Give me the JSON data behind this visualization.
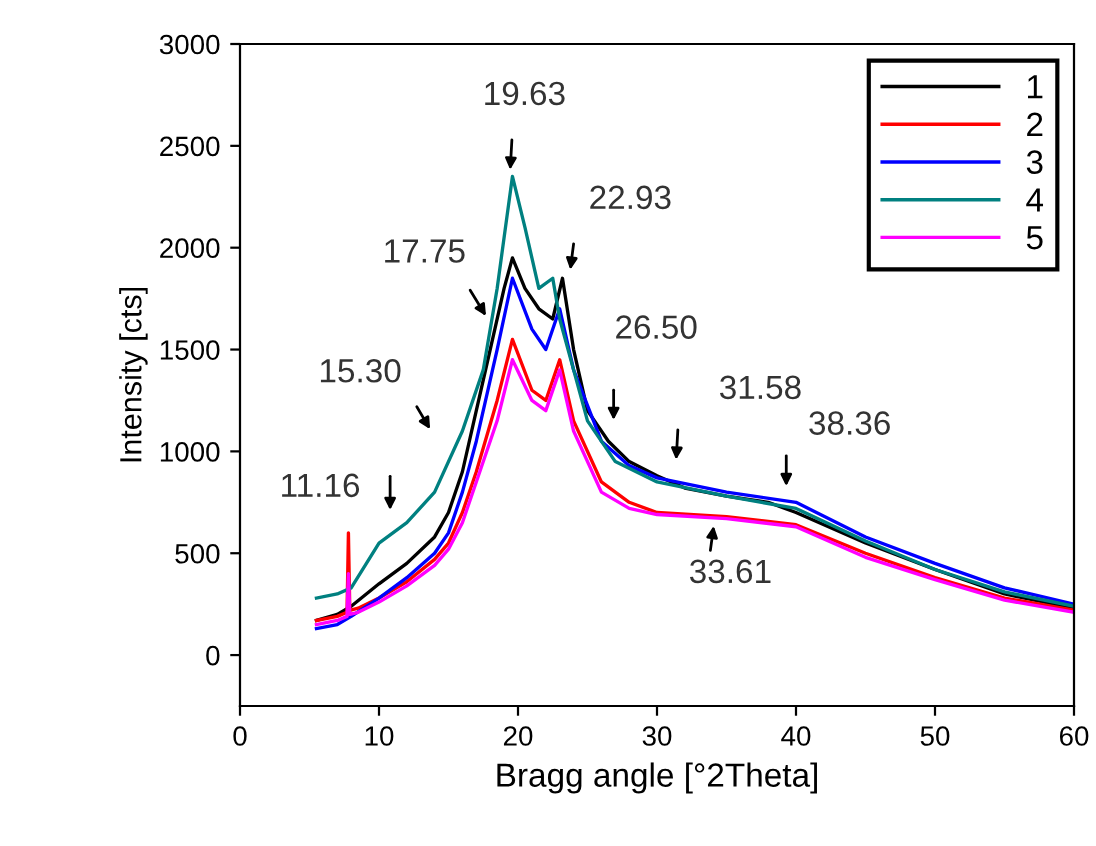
{
  "chart_data": {
    "type": "line",
    "xlabel": "Bragg angle [°2Theta]",
    "ylabel": "Intensity [cts]",
    "xlim": [
      0,
      60
    ],
    "ylim": [
      -250,
      3000
    ],
    "xticks": [
      0,
      10,
      20,
      30,
      40,
      50,
      60
    ],
    "yticks": [
      0,
      500,
      1000,
      1500,
      2000,
      2500,
      3000
    ],
    "legend": "top right",
    "grid": false,
    "series": [
      {
        "name": "1",
        "color": "#000000",
        "x": [
          5.5,
          7,
          8,
          10,
          12,
          14,
          15,
          16,
          17,
          18,
          19,
          19.6,
          20.5,
          21.5,
          22.5,
          23.2,
          24,
          25,
          26.5,
          28,
          30,
          32,
          35,
          38,
          40,
          45,
          50,
          55,
          60
        ],
        "values": [
          170,
          200,
          240,
          350,
          450,
          580,
          700,
          900,
          1200,
          1500,
          1800,
          1950,
          1800,
          1700,
          1650,
          1850,
          1500,
          1200,
          1050,
          950,
          880,
          820,
          780,
          750,
          700,
          550,
          420,
          300,
          230
        ]
      },
      {
        "name": "2",
        "color": "#ff0000",
        "x": [
          5.5,
          7,
          7.7,
          7.8,
          7.9,
          8.5,
          10,
          12,
          14,
          15,
          16,
          17,
          18.5,
          19.6,
          21,
          22,
          23,
          24,
          26,
          28,
          30,
          35,
          40,
          45,
          50,
          55,
          60
        ],
        "values": [
          170,
          190,
          210,
          600,
          220,
          230,
          280,
          360,
          470,
          550,
          700,
          900,
          1250,
          1550,
          1300,
          1250,
          1450,
          1150,
          850,
          750,
          700,
          680,
          640,
          500,
          380,
          280,
          220
        ]
      },
      {
        "name": "3",
        "color": "#0000ff",
        "x": [
          5.5,
          7,
          8,
          10,
          12,
          14,
          15,
          16,
          17,
          18.5,
          19.6,
          21,
          22,
          23,
          24,
          26,
          28,
          30,
          35,
          40,
          45,
          50,
          55,
          60
        ],
        "values": [
          130,
          150,
          190,
          280,
          380,
          500,
          600,
          800,
          1050,
          1500,
          1850,
          1600,
          1500,
          1700,
          1400,
          1050,
          930,
          870,
          800,
          750,
          580,
          450,
          330,
          250
        ]
      },
      {
        "name": "4",
        "color": "#008080",
        "x": [
          5.5,
          7,
          8,
          10,
          12,
          14,
          16,
          17.5,
          18.5,
          19.6,
          20.5,
          21.5,
          22.5,
          23,
          24,
          25,
          27,
          30,
          35,
          40,
          45,
          50,
          55,
          60
        ],
        "values": [
          280,
          300,
          330,
          550,
          650,
          800,
          1100,
          1400,
          1800,
          2350,
          2100,
          1800,
          1850,
          1650,
          1400,
          1150,
          950,
          850,
          780,
          720,
          560,
          420,
          310,
          240
        ]
      },
      {
        "name": "5",
        "color": "#ff00ff",
        "x": [
          5.5,
          7,
          7.7,
          7.8,
          7.9,
          8.5,
          10,
          12,
          14,
          15,
          16,
          17,
          18.5,
          19.6,
          21,
          22,
          23,
          24,
          26,
          28,
          30,
          35,
          40,
          45,
          50,
          55,
          60
        ],
        "values": [
          150,
          170,
          190,
          400,
          200,
          210,
          260,
          340,
          440,
          520,
          650,
          850,
          1150,
          1450,
          1250,
          1200,
          1400,
          1100,
          800,
          720,
          690,
          670,
          630,
          480,
          370,
          270,
          210
        ]
      }
    ],
    "annotations": [
      "11.16",
      "15.30",
      "17.75",
      "19.63",
      "22.93",
      "26.50",
      "31.58",
      "38.36",
      "33.61"
    ]
  }
}
